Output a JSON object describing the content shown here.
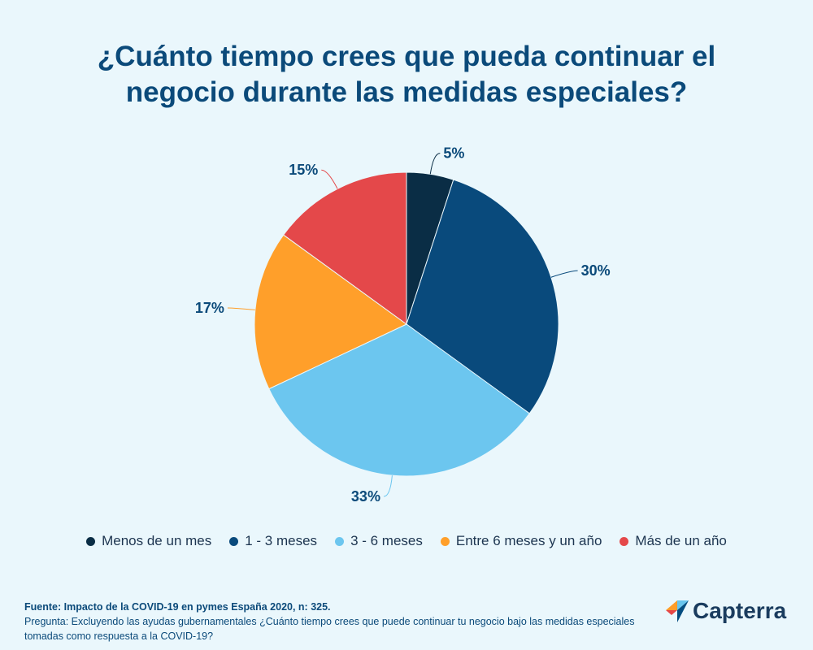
{
  "title": {
    "line1": "¿Cuánto tiempo crees que pueda continuar el",
    "line2": "negocio durante las medidas especiales?"
  },
  "chart_data": {
    "type": "pie",
    "categories": [
      "Menos de un mes",
      "1 - 3 meses",
      "3 - 6 meses",
      "Entre 6 meses y un año",
      "Más de un año"
    ],
    "values": [
      5,
      30,
      33,
      17,
      15
    ],
    "labels": [
      "5%",
      "30%",
      "33%",
      "17%",
      "15%"
    ],
    "colors": [
      "#0a2d45",
      "#094a7c",
      "#6cc6ef",
      "#ff9f2a",
      "#e4484a"
    ],
    "legend_position": "bottom"
  },
  "footer": {
    "source": "Fuente: Impacto de la COVID-19 en pymes España 2020, n: 325.",
    "question": "Pregunta: Excluyendo las ayudas gubernamentales ¿Cuánto tiempo crees que puede continuar tu negocio bajo las medidas especiales tomadas como respuesta a la COVID-19?"
  },
  "logo": {
    "text": "Capterra",
    "icon": "capterra-arrow-icon"
  }
}
